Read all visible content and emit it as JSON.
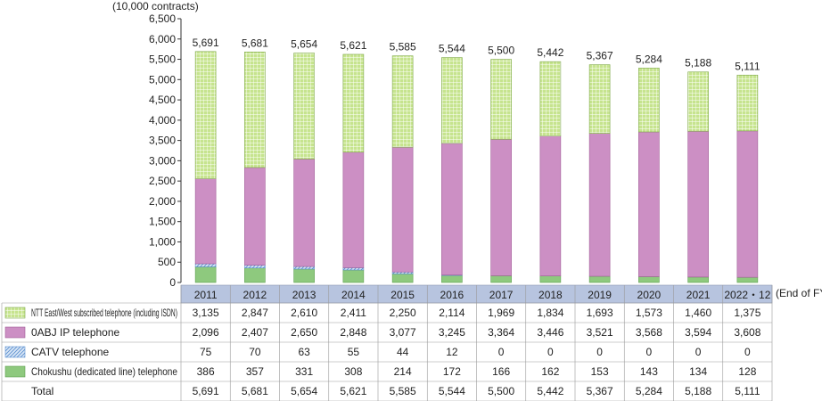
{
  "chart_data": {
    "type": "bar",
    "stacked": true,
    "unit_label": "(10,000 contracts)",
    "period_label": "(End of FY)",
    "categories": [
      "2011",
      "2012",
      "2013",
      "2014",
      "2015",
      "2016",
      "2017",
      "2018",
      "2019",
      "2020",
      "2021",
      "2022・12"
    ],
    "ylim": [
      0,
      6500
    ],
    "yticks": [
      0,
      500,
      1000,
      1500,
      2000,
      2500,
      3000,
      3500,
      4000,
      4500,
      5000,
      5500,
      6000,
      6500
    ],
    "grid": false,
    "series": [
      {
        "name": "Chokushu (dedicated line) telephone",
        "color": "#8ec97e",
        "pattern": "solid",
        "values": [
          386,
          357,
          331,
          308,
          214,
          172,
          166,
          162,
          153,
          143,
          134,
          128
        ]
      },
      {
        "name": "CATV telephone",
        "color": "#a9c6e8",
        "pattern": "hatch",
        "values": [
          75,
          70,
          63,
          55,
          44,
          12,
          0,
          0,
          0,
          0,
          0,
          0
        ]
      },
      {
        "name": "0ABJ IP telephone",
        "color": "#cc8fc4",
        "pattern": "solid",
        "values": [
          2096,
          2407,
          2650,
          2848,
          3077,
          3245,
          3364,
          3446,
          3521,
          3568,
          3594,
          3608
        ]
      },
      {
        "name": "NTT East/West subscribed telephone (including ISDN)",
        "color": "#c6e48e",
        "pattern": "grid",
        "values": [
          3135,
          2847,
          2610,
          2411,
          2250,
          2114,
          1969,
          1834,
          1693,
          1573,
          1460,
          1375
        ]
      }
    ],
    "totals": [
      5691,
      5681,
      5654,
      5621,
      5585,
      5544,
      5500,
      5442,
      5367,
      5284,
      5188,
      5111
    ],
    "table": {
      "rows": [
        {
          "label": "NTT East/West subscribed telephone (including ISDN)",
          "series_index": 3,
          "cells": [
            "3,135",
            "2,847",
            "2,610",
            "2,411",
            "2,250",
            "2,114",
            "1,969",
            "1,834",
            "1,693",
            "1,573",
            "1,460",
            "1,375"
          ]
        },
        {
          "label": "0ABJ IP telephone",
          "series_index": 2,
          "cells": [
            "2,096",
            "2,407",
            "2,650",
            "2,848",
            "3,077",
            "3,245",
            "3,364",
            "3,446",
            "3,521",
            "3,568",
            "3,594",
            "3,608"
          ]
        },
        {
          "label": "CATV telephone",
          "series_index": 1,
          "cells": [
            "75",
            "70",
            "63",
            "55",
            "44",
            "12",
            "0",
            "0",
            "0",
            "0",
            "0",
            "0"
          ]
        },
        {
          "label": "Chokushu (dedicated line) telephone",
          "series_index": 0,
          "cells": [
            "386",
            "357",
            "331",
            "308",
            "214",
            "172",
            "166",
            "162",
            "153",
            "143",
            "134",
            "128"
          ]
        },
        {
          "label": "Total",
          "series_index": null,
          "cells": [
            "5,691",
            "5,681",
            "5,654",
            "5,621",
            "5,585",
            "5,544",
            "5,500",
            "5,442",
            "5,367",
            "5,284",
            "5,188",
            "5,111"
          ]
        }
      ]
    },
    "tick_labels": [
      "0",
      "500",
      "1,000",
      "1,500",
      "2,000",
      "2,500",
      "3,000",
      "3,500",
      "4,000",
      "4,500",
      "5,000",
      "5,500",
      "6,000",
      "6,500"
    ],
    "total_labels": [
      "5,691",
      "5,681",
      "5,654",
      "5,621",
      "5,585",
      "5,544",
      "5,500",
      "5,442",
      "5,367",
      "5,284",
      "5,188",
      "5,111"
    ]
  }
}
